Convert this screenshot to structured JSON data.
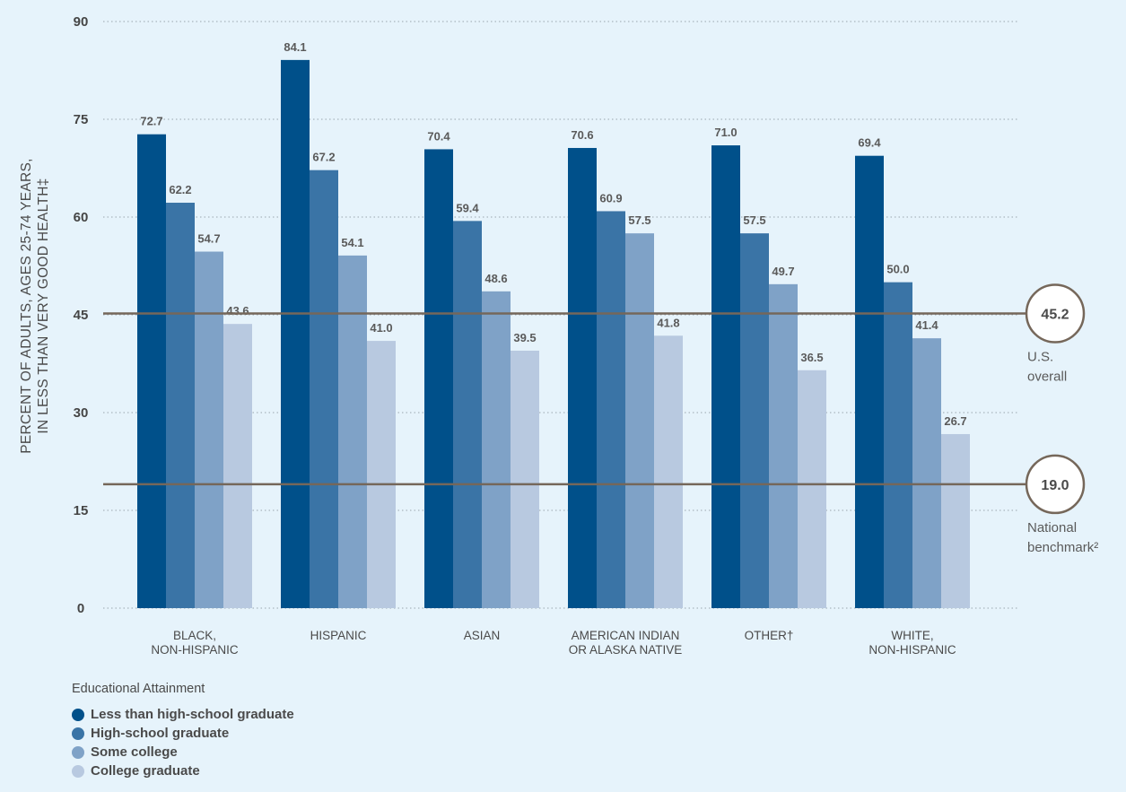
{
  "chart_data": {
    "type": "bar",
    "ylabel": [
      "PERCENT OF ADULTS, AGES 25-74 YEARS,",
      "IN LESS THAN VERY GOOD HEALTH‡"
    ],
    "ylim": [
      0,
      90
    ],
    "yticks": [
      0,
      15,
      30,
      45,
      60,
      75,
      90
    ],
    "grid": true,
    "categories": [
      [
        "BLACK,",
        "NON-HISPANIC"
      ],
      [
        "HISPANIC"
      ],
      [
        "ASIAN"
      ],
      [
        "AMERICAN INDIAN",
        "OR ALASKA NATIVE"
      ],
      [
        "OTHER†"
      ],
      [
        "WHITE,",
        "NON-HISPANIC"
      ]
    ],
    "series": [
      {
        "name": "Less than high-school graduate",
        "color": "#00508a",
        "values": [
          72.7,
          84.1,
          70.4,
          70.6,
          71.0,
          69.4
        ]
      },
      {
        "name": "High-school graduate",
        "color": "#3a74a6",
        "values": [
          62.2,
          67.2,
          59.4,
          60.9,
          57.5,
          50.0
        ]
      },
      {
        "name": "Some college",
        "color": "#7fa2c7",
        "values": [
          54.7,
          54.1,
          48.6,
          57.5,
          49.7,
          41.4
        ]
      },
      {
        "name": "College graduate",
        "color": "#b8c9e0",
        "values": [
          43.6,
          41.0,
          39.5,
          41.8,
          36.5,
          26.7
        ]
      }
    ],
    "reference_lines": [
      {
        "value": 45.2,
        "label": "45.2",
        "text": [
          "U.S.",
          "overall"
        ]
      },
      {
        "value": 19.0,
        "label": "19.0",
        "text": [
          "National",
          "benchmark²"
        ]
      }
    ],
    "legend_title": "Educational Attainment",
    "legend_position": "bottom-left"
  }
}
